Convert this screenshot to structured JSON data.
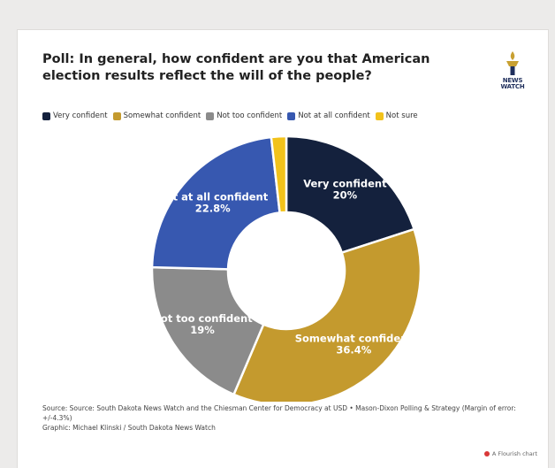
{
  "title": "Poll: In general, how confident are you that American election results reflect the will of the people?",
  "logo": {
    "text": "NEWS WATCH",
    "colors": {
      "navy": "#1f2f5c",
      "gold": "#c8a032"
    }
  },
  "footer": {
    "source": "Source: Source: South Dakota News Watch and the Chiesman Center for Democracy at USD • Mason-Dixon Polling & Strategy (Margin of error: +/-4.3%)",
    "graphic": "Graphic: Michael Klinski / South Dakota News Watch"
  },
  "flourish_label": "A Flourish chart",
  "chart_data": {
    "type": "pie",
    "donut": true,
    "legend_position": "top-left",
    "unit": "%",
    "slices": [
      {
        "label": "Very confident",
        "value": 20,
        "display": "20%",
        "color": "#14213d"
      },
      {
        "label": "Somewhat confident",
        "value": 36.4,
        "display": "36.4%",
        "color": "#c49a2e"
      },
      {
        "label": "Not too confident",
        "value": 19,
        "display": "19%",
        "color": "#8b8b8b"
      },
      {
        "label": "Not at all confident",
        "value": 22.8,
        "display": "22.8%",
        "color": "#3758b0"
      },
      {
        "label": "Not sure",
        "value": 1.8,
        "display": "",
        "color": "#f2c21b"
      }
    ]
  }
}
